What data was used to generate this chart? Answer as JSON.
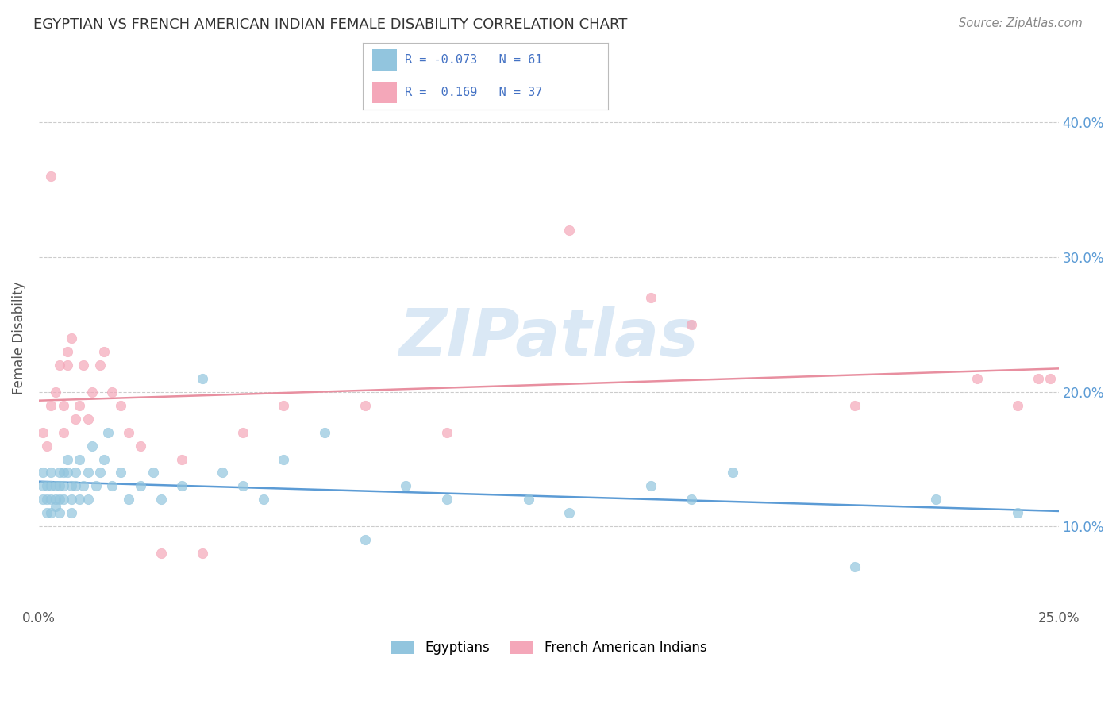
{
  "title": "EGYPTIAN VS FRENCH AMERICAN INDIAN FEMALE DISABILITY CORRELATION CHART",
  "source": "Source: ZipAtlas.com",
  "ylabel": "Female Disability",
  "xlim": [
    0.0,
    0.25
  ],
  "ylim": [
    0.04,
    0.44
  ],
  "yticks": [
    0.1,
    0.2,
    0.3,
    0.4
  ],
  "yticklabels": [
    "10.0%",
    "20.0%",
    "30.0%",
    "40.0%"
  ],
  "legend_label1": "Egyptians",
  "legend_label2": "French American Indians",
  "color_blue": "#92C5DE",
  "color_pink": "#F4A7B9",
  "watermark": "ZIPatlas",
  "egyptians_x": [
    0.001,
    0.001,
    0.001,
    0.002,
    0.002,
    0.002,
    0.003,
    0.003,
    0.003,
    0.003,
    0.004,
    0.004,
    0.004,
    0.005,
    0.005,
    0.005,
    0.005,
    0.006,
    0.006,
    0.006,
    0.007,
    0.007,
    0.008,
    0.008,
    0.008,
    0.009,
    0.009,
    0.01,
    0.01,
    0.011,
    0.012,
    0.012,
    0.013,
    0.014,
    0.015,
    0.016,
    0.017,
    0.018,
    0.02,
    0.022,
    0.025,
    0.028,
    0.03,
    0.035,
    0.04,
    0.045,
    0.05,
    0.055,
    0.06,
    0.07,
    0.08,
    0.09,
    0.1,
    0.12,
    0.13,
    0.15,
    0.16,
    0.17,
    0.2,
    0.22,
    0.24
  ],
  "egyptians_y": [
    0.13,
    0.12,
    0.14,
    0.11,
    0.13,
    0.12,
    0.12,
    0.14,
    0.11,
    0.13,
    0.12,
    0.13,
    0.115,
    0.12,
    0.14,
    0.11,
    0.13,
    0.13,
    0.12,
    0.14,
    0.14,
    0.15,
    0.12,
    0.11,
    0.13,
    0.13,
    0.14,
    0.12,
    0.15,
    0.13,
    0.14,
    0.12,
    0.16,
    0.13,
    0.14,
    0.15,
    0.17,
    0.13,
    0.14,
    0.12,
    0.13,
    0.14,
    0.12,
    0.13,
    0.21,
    0.14,
    0.13,
    0.12,
    0.15,
    0.17,
    0.09,
    0.13,
    0.12,
    0.12,
    0.11,
    0.13,
    0.12,
    0.14,
    0.07,
    0.12,
    0.11
  ],
  "french_x": [
    0.001,
    0.002,
    0.003,
    0.003,
    0.004,
    0.005,
    0.006,
    0.006,
    0.007,
    0.007,
    0.008,
    0.009,
    0.01,
    0.011,
    0.012,
    0.013,
    0.015,
    0.016,
    0.018,
    0.02,
    0.022,
    0.025,
    0.03,
    0.035,
    0.04,
    0.05,
    0.06,
    0.08,
    0.1,
    0.13,
    0.15,
    0.16,
    0.2,
    0.23,
    0.24,
    0.245,
    0.248
  ],
  "french_y": [
    0.17,
    0.16,
    0.36,
    0.19,
    0.2,
    0.22,
    0.19,
    0.17,
    0.23,
    0.22,
    0.24,
    0.18,
    0.19,
    0.22,
    0.18,
    0.2,
    0.22,
    0.23,
    0.2,
    0.19,
    0.17,
    0.16,
    0.08,
    0.15,
    0.08,
    0.17,
    0.19,
    0.19,
    0.17,
    0.32,
    0.27,
    0.25,
    0.19,
    0.21,
    0.19,
    0.21,
    0.21
  ]
}
